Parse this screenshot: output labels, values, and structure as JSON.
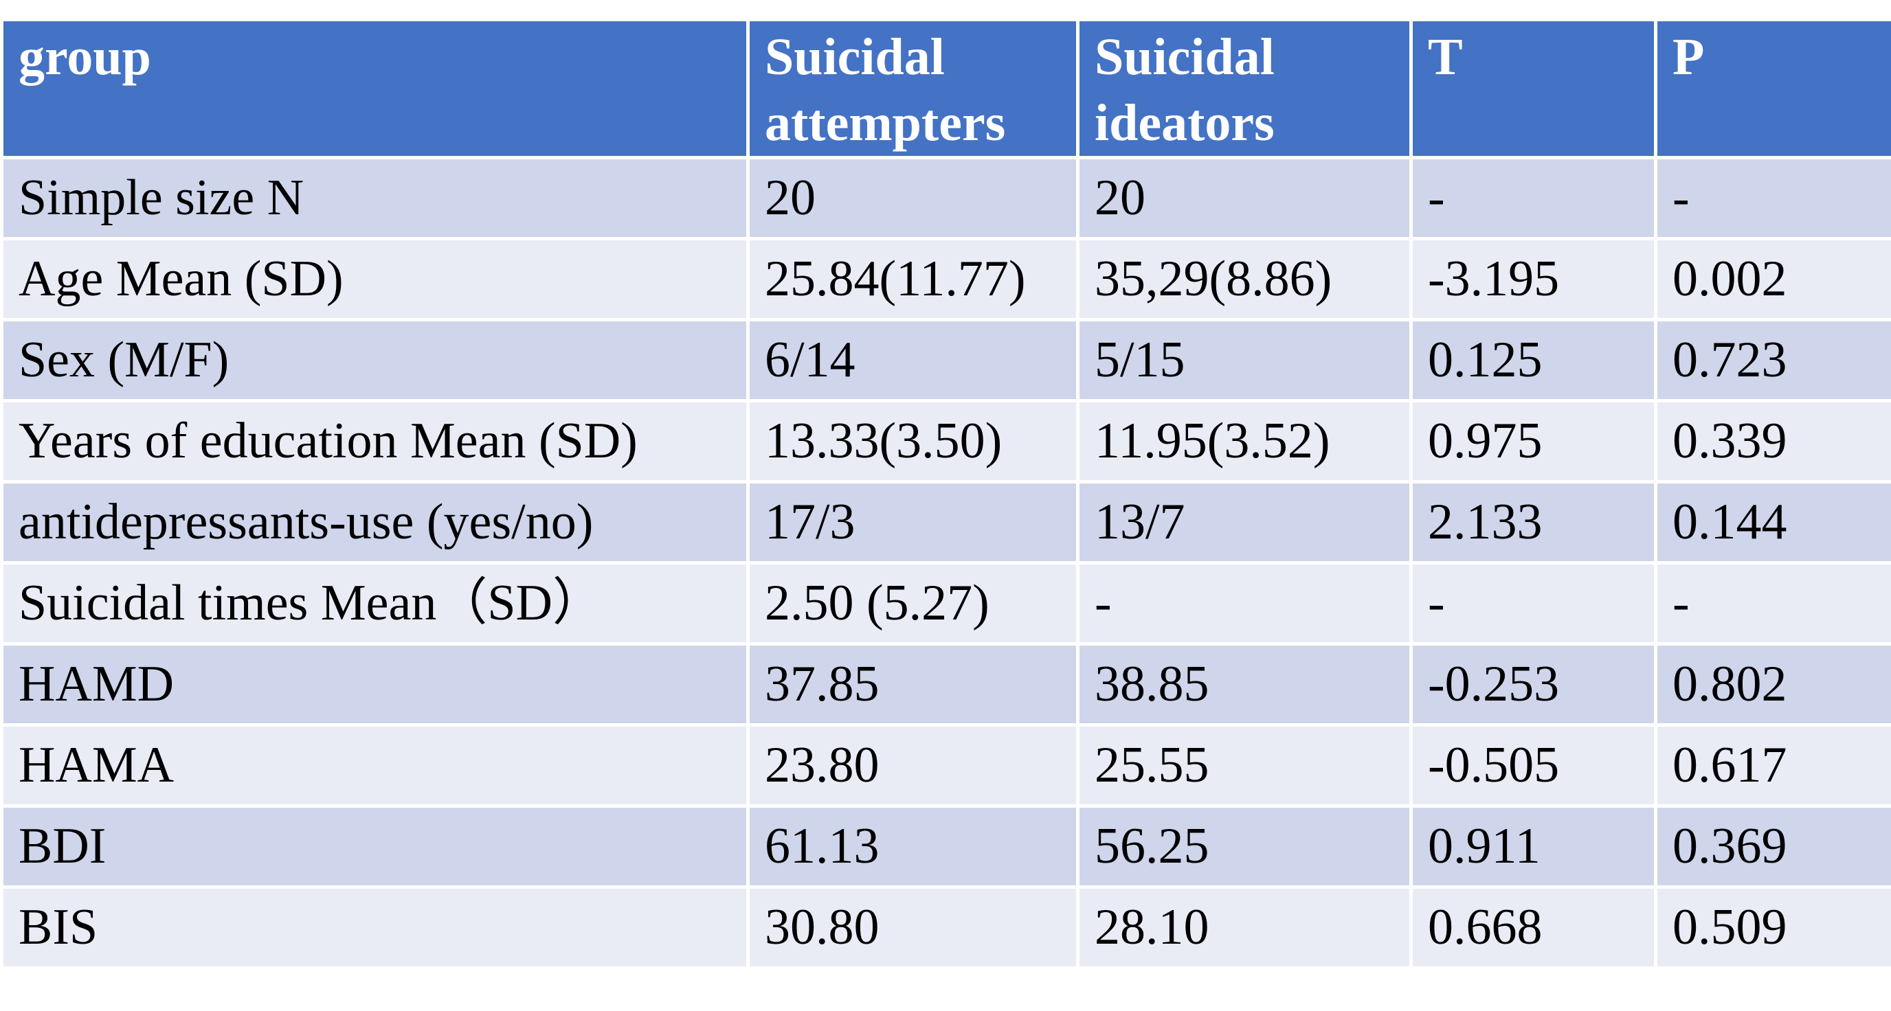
{
  "table": {
    "headers": [
      "group",
      "Suicidal attempters",
      "Suicidal ideators",
      "T",
      "P"
    ],
    "rows": [
      [
        "Simple size N",
        "20",
        "20",
        "-",
        "-"
      ],
      [
        "Age  Mean (SD)",
        "25.84(11.77)",
        "35,29(8.86)",
        "-3.195",
        "0.002"
      ],
      [
        "Sex  (M/F)",
        "6/14",
        "5/15",
        "0.125",
        "0.723"
      ],
      [
        "Years of education  Mean (SD)",
        "13.33(3.50)",
        "11.95(3.52)",
        "0.975",
        "0.339"
      ],
      [
        "antidepressants-use (yes/no)",
        "17/3",
        "13/7",
        "2.133",
        "0.144"
      ],
      [
        "Suicidal times  Mean（SD）",
        "2.50 (5.27)",
        "-",
        "-",
        "-"
      ],
      [
        "HAMD",
        "37.85",
        "38.85",
        "-0.253",
        "0.802"
      ],
      [
        "HAMA",
        "23.80",
        "25.55",
        "-0.505",
        "0.617"
      ],
      [
        "BDI",
        "61.13",
        "56.25",
        "0.911",
        "0.369"
      ],
      [
        "BIS",
        "30.80",
        "28.10",
        "0.668",
        "0.509"
      ]
    ]
  },
  "colors": {
    "header_bg": "#4472c4",
    "row_odd_bg": "#cfd5ea",
    "row_even_bg": "#e9ebf5",
    "header_text": "#ffffff",
    "body_text": "#000000"
  }
}
